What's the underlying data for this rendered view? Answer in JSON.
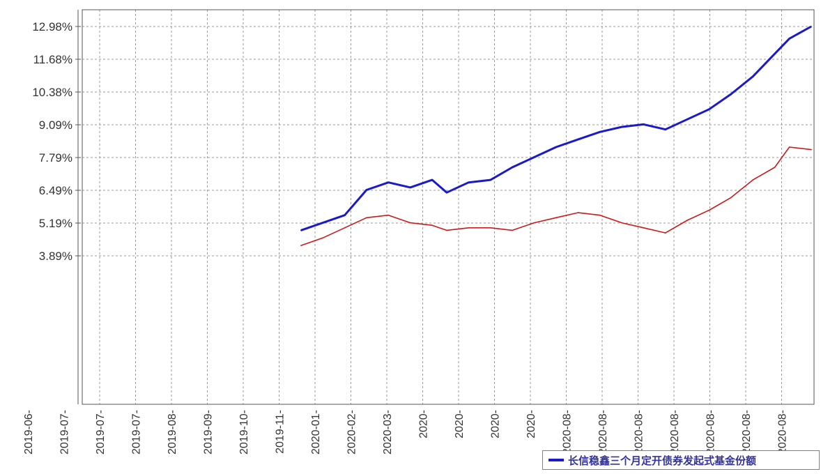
{
  "chart_data": {
    "type": "line",
    "title": "",
    "xlabel": "",
    "ylabel": "",
    "y_tick_labels": [
      "3.89%",
      "5.19%",
      "6.49%",
      "7.79%",
      "9.09%",
      "10.38%",
      "11.68%",
      "12.98%"
    ],
    "x_tick_labels": [
      "2019-06-",
      "2019-07-",
      "2019-07-",
      "2019-07-",
      "2019-08-",
      "2019-09-",
      "2019-10-",
      "2019-11-",
      "2020-01-",
      "2020-02-",
      "2020-03-",
      "2020-",
      "2020-",
      "2020-",
      "2020-",
      "2020-08-",
      "2020-08-",
      "2020-08-",
      "2020-08-",
      "2020-08-",
      "2020-08-",
      "2020-08-"
    ],
    "ylim": [
      3.89,
      13.5
    ],
    "grid": true,
    "legend_position": "bottom-right",
    "series": [
      {
        "name": "长信稳鑫三个月定开债券发起式基金份额",
        "color": "#1a1acc",
        "x": [
          0.3,
          0.33,
          0.36,
          0.39,
          0.42,
          0.45,
          0.48,
          0.5,
          0.53,
          0.56,
          0.59,
          0.62,
          0.65,
          0.68,
          0.71,
          0.74,
          0.77,
          0.8,
          0.83,
          0.86,
          0.89,
          0.92,
          0.95,
          0.97,
          1.0
        ],
        "values": [
          4.9,
          5.2,
          5.5,
          6.5,
          6.8,
          6.6,
          6.9,
          6.4,
          6.8,
          6.9,
          7.4,
          7.8,
          8.2,
          8.5,
          8.8,
          9.0,
          9.1,
          8.9,
          9.3,
          9.7,
          10.3,
          11.0,
          11.9,
          12.5,
          12.98
        ]
      },
      {
        "name": "",
        "color": "#cc1a1a",
        "x": [
          0.3,
          0.33,
          0.36,
          0.39,
          0.42,
          0.45,
          0.48,
          0.5,
          0.53,
          0.56,
          0.59,
          0.62,
          0.65,
          0.68,
          0.71,
          0.74,
          0.77,
          0.8,
          0.83,
          0.86,
          0.89,
          0.92,
          0.95,
          0.97,
          1.0
        ],
        "values": [
          4.3,
          4.6,
          5.0,
          5.4,
          5.5,
          5.2,
          5.1,
          4.9,
          5.0,
          5.0,
          4.9,
          5.2,
          5.4,
          5.6,
          5.5,
          5.2,
          5.0,
          4.8,
          5.3,
          5.7,
          6.2,
          6.9,
          7.4,
          8.2,
          8.1
        ]
      }
    ]
  },
  "legend": {
    "label": "长信稳鑫三个月定开债券发起式基金份额",
    "color": "#1a1acc"
  },
  "colors": {
    "grid": "#9a9a9a",
    "axis": "#555555",
    "tick_text": "#333333"
  }
}
